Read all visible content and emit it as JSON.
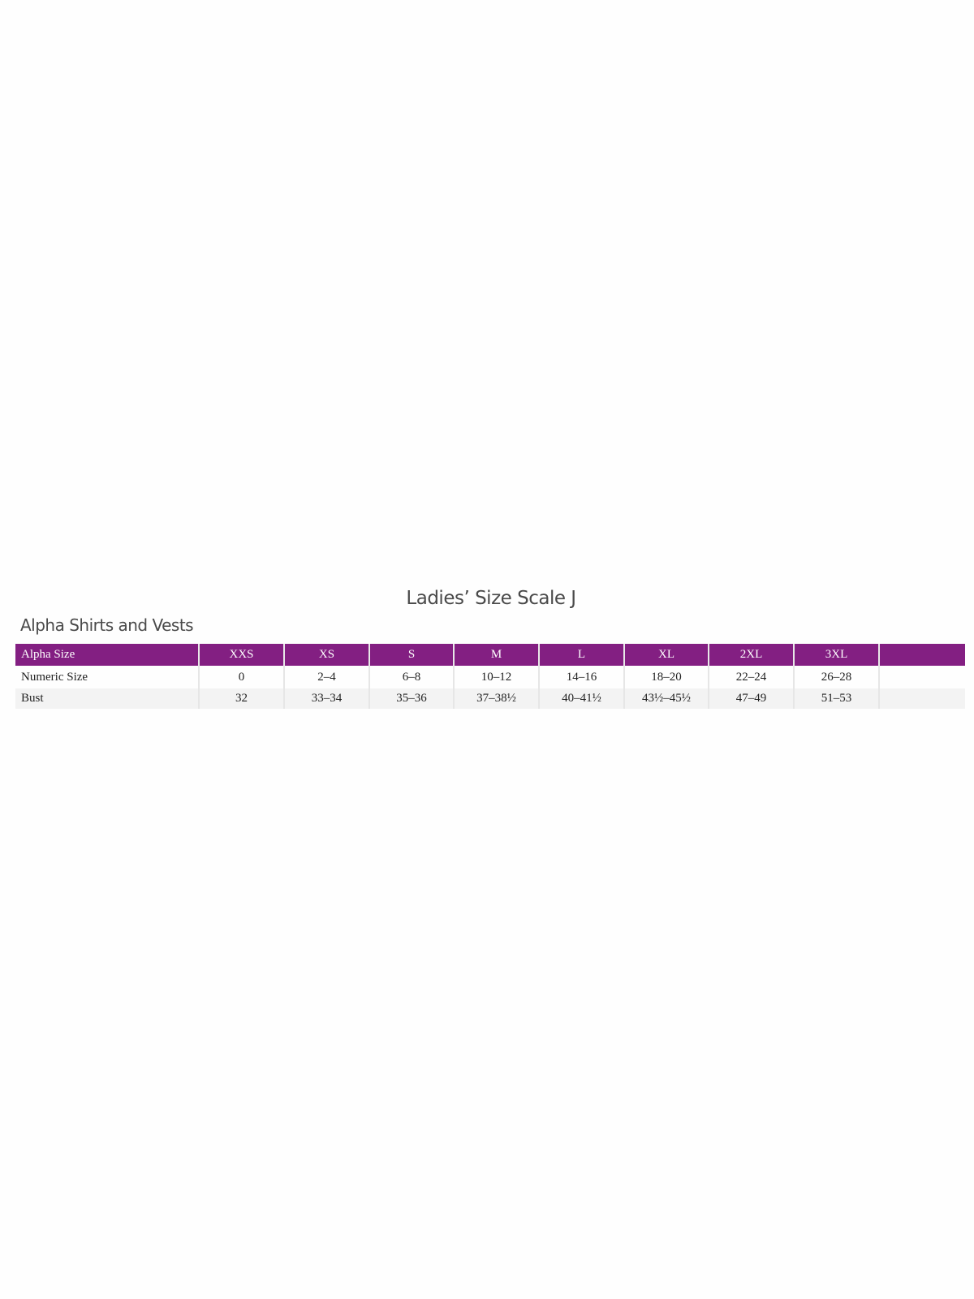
{
  "title": "Ladies’ Size Scale J",
  "subtitle": "Alpha Shirts and Vests",
  "accent_color": "#831f82",
  "table": {
    "header": [
      "Alpha Size",
      "XXS",
      "XS",
      "S",
      "M",
      "L",
      "XL",
      "2XL",
      "3XL",
      ""
    ],
    "rows": [
      [
        "Numeric Size",
        "0",
        "2–4",
        "6–8",
        "10–12",
        "14–16",
        "18–20",
        "22–24",
        "26–28",
        ""
      ],
      [
        "Bust",
        "32",
        "33–34",
        "35–36",
        "37–38½",
        "40–41½",
        "43½–45½",
        "47–49",
        "51–53",
        ""
      ]
    ]
  }
}
